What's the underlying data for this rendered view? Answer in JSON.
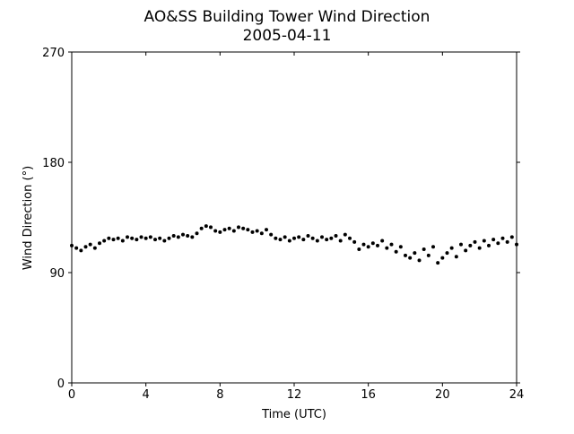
{
  "chart_data": {
    "type": "scatter",
    "title": "AO&SS Building Tower Wind Direction",
    "subtitle": "2005-04-11",
    "x_label": "Time (UTC)",
    "y_label": "Wind Direction (°)",
    "xlim": [
      0,
      24
    ],
    "xticks": [
      0,
      4,
      8,
      12,
      16,
      20,
      24
    ],
    "ylim": [
      0,
      270
    ],
    "yticks": [
      0,
      90,
      180,
      270
    ],
    "color": "#000000",
    "x": [
      0,
      0.25,
      0.5,
      0.75,
      1,
      1.25,
      1.5,
      1.75,
      2,
      2.25,
      2.5,
      2.75,
      3,
      3.25,
      3.5,
      3.75,
      4,
      4.25,
      4.5,
      4.75,
      5,
      5.25,
      5.5,
      5.75,
      6,
      6.25,
      6.5,
      6.75,
      7,
      7.25,
      7.5,
      7.75,
      8,
      8.25,
      8.5,
      8.75,
      9,
      9.25,
      9.5,
      9.75,
      10,
      10.25,
      10.5,
      10.75,
      11,
      11.25,
      11.5,
      11.75,
      12,
      12.25,
      12.5,
      12.75,
      13,
      13.25,
      13.5,
      13.75,
      14,
      14.25,
      14.5,
      14.75,
      15,
      15.25,
      15.5,
      15.75,
      16,
      16.25,
      16.5,
      16.75,
      17,
      17.25,
      17.5,
      17.75,
      18,
      18.25,
      18.5,
      18.75,
      19,
      19.25,
      19.5,
      19.75,
      20,
      20.25,
      20.5,
      20.75,
      21,
      21.25,
      21.5,
      21.75,
      22,
      22.25,
      22.5,
      22.75,
      23,
      23.25,
      23.5,
      23.75,
      24
    ],
    "values": [
      112,
      110,
      108,
      111,
      113,
      110,
      114,
      116,
      118,
      117,
      118,
      116,
      119,
      118,
      117,
      119,
      118,
      119,
      117,
      118,
      116,
      118,
      120,
      119,
      121,
      120,
      119,
      122,
      126,
      128,
      127,
      124,
      123,
      125,
      126,
      124,
      127,
      126,
      125,
      123,
      124,
      122,
      125,
      121,
      118,
      117,
      119,
      116,
      118,
      119,
      117,
      120,
      118,
      116,
      119,
      117,
      118,
      120,
      116,
      121,
      118,
      115,
      109,
      113,
      111,
      114,
      112,
      116,
      110,
      113,
      107,
      111,
      104,
      102,
      106,
      100,
      109,
      104,
      111,
      98,
      102,
      106,
      110,
      103,
      113,
      108,
      112,
      115,
      110,
      116,
      112,
      117,
      114,
      118,
      115,
      119,
      113
    ]
  }
}
